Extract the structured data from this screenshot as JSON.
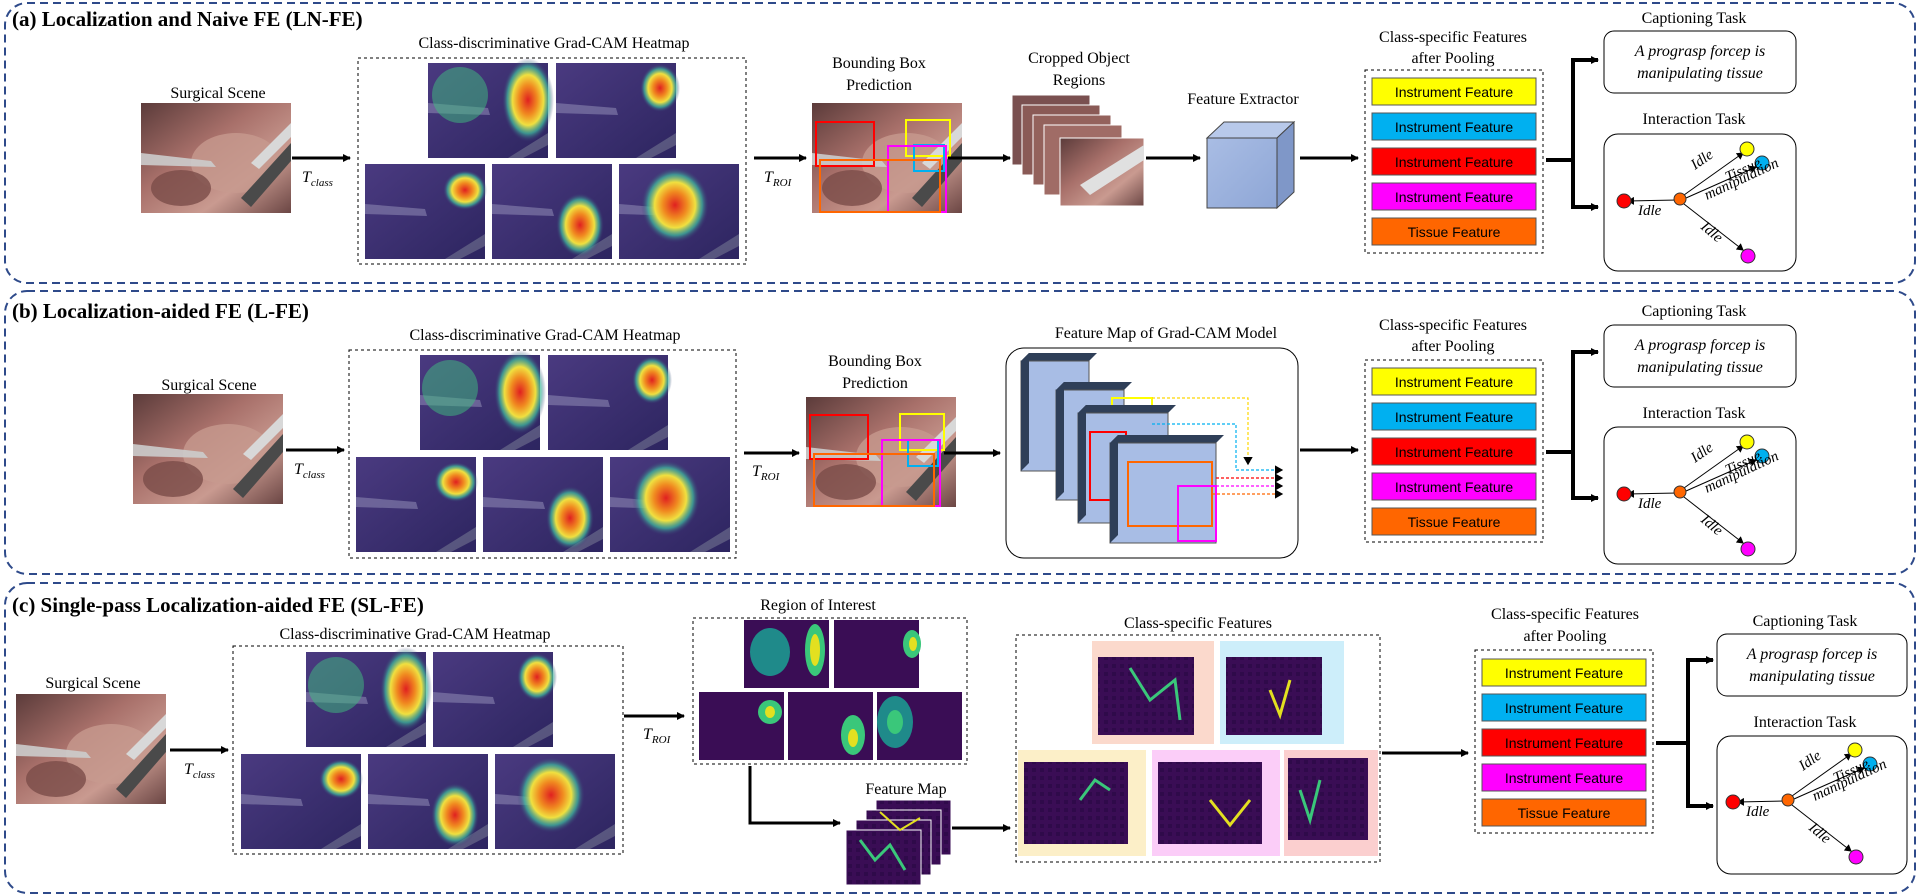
{
  "colors": {
    "dash": "#2e4a8a",
    "instr1": "#ffff00",
    "instr2": "#00b0f0",
    "instr3": "#ff0000",
    "instr4": "#ff00ff",
    "tissue": "#ff6600",
    "surgical": "#8a5a58",
    "heat_bg": "#3c2f70",
    "extractor": "#9db3dd"
  },
  "panels": [
    {
      "title": "(a) Localization and Naive FE (LN-FE)",
      "scene": "Surgical Scene",
      "tclass": "T",
      "tclass_sub": "class",
      "heatmap": "Class-discriminative  Grad-CAM Heatmap",
      "troi": "T",
      "troi_sub": "ROI",
      "bbox1": "Bounding Box",
      "bbox2": "Prediction",
      "crop1": "Cropped Object",
      "crop2": "Regions",
      "extractor": "Feature Extractor",
      "pool1": "Class-specific Features",
      "pool2": "after Pooling",
      "caption_task": "Captioning Task",
      "caption1": "A prograsp forcep is",
      "caption2": "manipulating tissue",
      "interaction_task": "Interaction Task",
      "idle_a": "Idle",
      "idle_b": "Idle",
      "idle_c": "Idle",
      "tissue1": "Tissue",
      "tissue2": "manipulation"
    },
    {
      "title": "(b) Localization-aided FE (L-FE)",
      "scene": "Surgical Scene",
      "tclass": "T",
      "tclass_sub": "class",
      "heatmap": "Class-discriminative  Grad-CAM Heatmap",
      "troi": "T",
      "troi_sub": "ROI",
      "bbox1": "Bounding Box",
      "bbox2": "Prediction",
      "featmap": "Feature Map of Grad-CAM Model",
      "pool1": "Class-specific Features",
      "pool2": "after Pooling",
      "caption_task": "Captioning Task",
      "caption1": "A prograsp forcep is",
      "caption2": "manipulating tissue",
      "interaction_task": "Interaction Task",
      "idle_a": "Idle",
      "idle_b": "Idle",
      "idle_c": "Idle",
      "tissue1": "Tissue",
      "tissue2": "manipulation"
    },
    {
      "title": "(c) Single-pass Localization-aided FE (SL-FE)",
      "scene": "Surgical Scene",
      "tclass": "T",
      "tclass_sub": "class",
      "heatmap": "Class-discriminative  Grad-CAM Heatmap",
      "troi": "T",
      "troi_sub": "ROI",
      "roi": "Region of Interest",
      "featmap": "Feature Map",
      "classfeat": "Class-specific Features",
      "pool1": "Class-specific Features",
      "pool2": "after Pooling",
      "caption_task": "Captioning Task",
      "caption1": "A prograsp forcep is",
      "caption2": "manipulating tissue",
      "interaction_task": "Interaction Task",
      "idle_a": "Idle",
      "idle_b": "Idle",
      "idle_c": "Idle",
      "tissue1": "Tissue",
      "tissue2": "manipulation"
    }
  ],
  "features": [
    {
      "label": "Instrument Feature",
      "color": "#ffff00"
    },
    {
      "label": "Instrument Feature",
      "color": "#00b0f0"
    },
    {
      "label": "Instrument Feature",
      "color": "#ff0000"
    },
    {
      "label": "Instrument Feature",
      "color": "#ff00ff"
    },
    {
      "label": "Tissue Feature",
      "color": "#ff6600"
    }
  ]
}
